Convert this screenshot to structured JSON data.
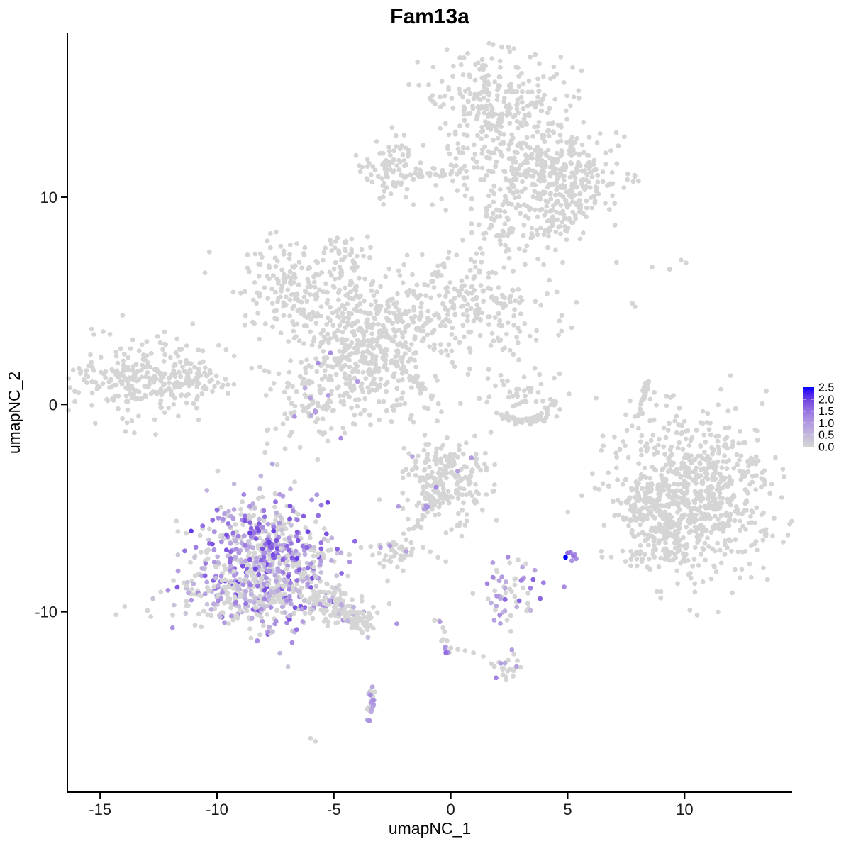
{
  "page": {
    "title": "Fam13a"
  },
  "chart_data": {
    "type": "scatter",
    "subtype": "umap-feature-plot",
    "title": "Fam13a",
    "xlabel": "umapNC_1",
    "ylabel": "umapNC_2",
    "xlim": [
      -16.4,
      14.6
    ],
    "ylim": [
      -18.7,
      17.9
    ],
    "xticks": [
      "-15",
      "-10",
      "-5",
      "0",
      "5",
      "10"
    ],
    "xtick_values": [
      -15,
      -10,
      -5,
      0,
      5,
      10
    ],
    "yticks": [
      "10",
      "0",
      "-10"
    ],
    "ytick_values": [
      10,
      0,
      -10
    ],
    "grid": false,
    "background": "#ffffff",
    "gray_color": "#d5d5d5",
    "point_color_stops": [
      [
        0,
        "#d5d5d5"
      ],
      [
        0.25,
        "#bfb1de"
      ],
      [
        0.5,
        "#a78ae2"
      ],
      [
        0.75,
        "#7b50e0"
      ],
      [
        0.92,
        "#3c16f2"
      ],
      [
        1,
        "#0000ff"
      ]
    ],
    "legend": {
      "position": "right",
      "labels": [
        "2.5",
        "2.0",
        "1.5",
        "1.0",
        "0.5",
        "0.0"
      ],
      "values": [
        2.5,
        2.0,
        1.5,
        1.0,
        0.5,
        0.0
      ],
      "vmin": 0.0,
      "vmax": 2.5,
      "low_color": "#d3d3d3",
      "high_color": "#0000ff"
    },
    "clusters": [
      {
        "name": "top-main-upper",
        "shape": "gauss",
        "cx": 1.97,
        "cy": 14.33,
        "sx": 1.45,
        "sy": 1.43,
        "n": 300
      },
      {
        "name": "top-main-mid",
        "shape": "gauss",
        "cx": 3.64,
        "cy": 11.43,
        "sx": 1.67,
        "sy": 1.13,
        "n": 260
      },
      {
        "name": "top-main-right",
        "shape": "gauss",
        "cx": 5.24,
        "cy": 10.82,
        "sx": 0.91,
        "sy": 0.92,
        "n": 130
      },
      {
        "name": "top-main-lower",
        "shape": "gauss",
        "cx": 2.79,
        "cy": 9.04,
        "sx": 1.21,
        "sy": 0.89,
        "n": 90
      },
      {
        "name": "top-main-lowerright",
        "shape": "gauss",
        "cx": 4.39,
        "cy": 8.7,
        "sx": 0.76,
        "sy": 0.68,
        "n": 40
      },
      {
        "name": "top-left-blob",
        "shape": "gauss",
        "cx": -2.42,
        "cy": 11.37,
        "sx": 0.76,
        "sy": 0.68,
        "n": 85
      },
      {
        "name": "top-left-trail",
        "shape": "bezier",
        "p": [
          -1.67,
          11.06,
          -0.45,
          11.33,
          0.82,
          11.19
        ],
        "jx": 0.15,
        "jy": 0.12,
        "n": 24
      },
      {
        "name": "mid-left-lobe",
        "shape": "gauss",
        "cx": -6.67,
        "cy": 5.53,
        "sx": 1.27,
        "sy": 1.16,
        "n": 180
      },
      {
        "name": "mid-top-blob",
        "shape": "gauss",
        "cx": -4.48,
        "cy": 7.3,
        "sx": 0.42,
        "sy": 0.44,
        "n": 35
      },
      {
        "name": "mid-top-chain",
        "shape": "bezier",
        "p": [
          -4.21,
          6.89,
          -4.09,
          5.8,
          -3.91,
          4.71
        ],
        "jx": 0.1,
        "jy": 0.1,
        "n": 8
      },
      {
        "name": "mid-center",
        "shape": "gauss",
        "cx": -3.48,
        "cy": 3.69,
        "sx": 1.52,
        "sy": 1.23,
        "n": 300
      },
      {
        "name": "mid-bottom",
        "shape": "gauss",
        "cx": -3.48,
        "cy": 1.71,
        "sx": 1.15,
        "sy": 0.89,
        "n": 140
      },
      {
        "name": "mid-right-arm",
        "shape": "gauss",
        "cx": 0.61,
        "cy": 4.85,
        "sx": 1.82,
        "sy": 1.13,
        "n": 240
      },
      {
        "name": "mid-streak",
        "shape": "bezier",
        "p": [
          -2.52,
          2.12,
          -1.67,
          1.3,
          -0.76,
          0.34
        ],
        "jx": 0.07,
        "jy": 0.07,
        "n": 32
      },
      {
        "name": "mid-sparse-below",
        "shape": "gauss",
        "cx": -2.27,
        "cy": -0.17,
        "sx": 1.21,
        "sy": 0.75,
        "n": 30
      },
      {
        "name": "mid-lower-blob",
        "shape": "gauss",
        "cx": -5.7,
        "cy": 0.48,
        "sx": 0.91,
        "sy": 1.13,
        "n": 120,
        "frac": 0.07,
        "tmin": 0.25,
        "tmax": 0.5
      },
      {
        "name": "left-oval",
        "shape": "gauss",
        "cx": -13.03,
        "cy": 1.3,
        "sx": 1.67,
        "sy": 0.89,
        "n": 280
      },
      {
        "name": "left-oval-tip",
        "shape": "gauss",
        "cx": -11.12,
        "cy": 1.16,
        "sx": 0.55,
        "sy": 0.34,
        "n": 40
      },
      {
        "name": "left-oval-trail",
        "shape": "points",
        "pts": [
          [
            -11.76,
            2.49,
            0
          ],
          [
            -11.52,
            2.66,
            0
          ],
          [
            -11.3,
            2.83,
            0
          ]
        ]
      },
      {
        "name": "cring-arc",
        "shape": "bezier",
        "p": [
          2.15,
          -0.44,
          3.33,
          -1.3,
          4.61,
          0.1
        ],
        "jx": 0.12,
        "jy": 0.1,
        "n": 55
      },
      {
        "name": "cring-scatter",
        "shape": "gauss",
        "cx": 3.09,
        "cy": 0.61,
        "sx": 0.76,
        "sy": 0.61,
        "n": 45
      },
      {
        "name": "thin-arc",
        "shape": "bezier",
        "p": [
          8.42,
          1.19,
          8.3,
          0.34,
          7.97,
          -0.61
        ],
        "jx": 0.05,
        "jy": 0.05,
        "n": 26
      },
      {
        "name": "thin-arc-dots",
        "shape": "points",
        "pts": [
          [
            8.7,
            0.58,
            0
          ],
          [
            8.79,
            -0.03,
            0
          ]
        ]
      },
      {
        "name": "right-big",
        "shape": "gauss",
        "cx": 10.39,
        "cy": -4.44,
        "sx": 1.72,
        "sy": 1.91,
        "n": 780
      },
      {
        "name": "right-appendage",
        "shape": "gauss",
        "cx": 8.27,
        "cy": -4.51,
        "sx": 0.39,
        "sy": 0.58,
        "n": 45
      },
      {
        "name": "right-tail",
        "shape": "gauss",
        "cx": 9.0,
        "cy": -6.62,
        "sx": 0.55,
        "sy": 0.75,
        "n": 60
      },
      {
        "name": "center-cluster",
        "shape": "gauss",
        "cx": -0.09,
        "cy": -3.82,
        "sx": 0.97,
        "sy": 1.02,
        "n": 230,
        "frac": 0.022,
        "tmin": 0.3,
        "tmax": 0.55
      },
      {
        "name": "center-tail",
        "shape": "bezier",
        "p": [
          -0.7,
          -4.54,
          -1.15,
          -5.36,
          -1.61,
          -6.21
        ],
        "jx": 0.07,
        "jy": 0.07,
        "n": 18,
        "frac": 0.12,
        "tmin": 0.3,
        "tmax": 0.45
      },
      {
        "name": "small-blob",
        "shape": "gauss",
        "cx": -2.27,
        "cy": -7.06,
        "sx": 0.48,
        "sy": 0.38,
        "n": 40,
        "frac": 0.06,
        "tmin": 0.3,
        "tmax": 0.45
      },
      {
        "name": "small-blob-dots",
        "shape": "points",
        "pts": [
          [
            -1.18,
            -6.89,
            0
          ],
          [
            -0.88,
            -7.1,
            0
          ],
          [
            -0.55,
            -7.37,
            0
          ],
          [
            -0.21,
            -7.58,
            0
          ]
        ]
      },
      {
        "name": "purple-main",
        "shape": "gauss",
        "cx": -7.97,
        "cy": -7.44,
        "sx": 1.52,
        "sy": 1.57,
        "n": 620,
        "frac": 0.6,
        "tmin": 0.1,
        "tmax": 0.82,
        "pow": 1.25
      },
      {
        "name": "purple-base",
        "shape": "gauss",
        "cx": -8.27,
        "cy": -9.28,
        "sx": 1.7,
        "sy": 0.82,
        "n": 260,
        "frac": 0.42,
        "tmin": 0.1,
        "tmax": 0.6,
        "pow": 1.3
      },
      {
        "name": "purple-tail",
        "shape": "bezier",
        "p": [
          -5.55,
          -9.28,
          -4.7,
          -9.83,
          -3.67,
          -10.44
        ],
        "jx": 0.5,
        "jy": 0.3,
        "n": 110,
        "frac": 0.1,
        "tmin": 0.12,
        "tmax": 0.4
      },
      {
        "name": "purple-tail-end",
        "shape": "gauss",
        "cx": -3.73,
        "cy": -10.44,
        "sx": 0.3,
        "sy": 0.27,
        "n": 25
      },
      {
        "name": "blue-mini",
        "shape": "points",
        "pts": [
          [
            4.91,
            -7.37,
            1.0
          ],
          [
            5.12,
            -7.13,
            0.55
          ],
          [
            5.3,
            -7.24,
            0.5
          ],
          [
            5.18,
            -7.54,
            0.45
          ],
          [
            5.0,
            -7.17,
            0.62
          ],
          [
            5.36,
            -7.44,
            0.5
          ],
          [
            5.24,
            -7.31,
            0.58
          ]
        ]
      },
      {
        "name": "mixed-small",
        "shape": "gauss",
        "cx": 2.45,
        "cy": -9.08,
        "sx": 0.61,
        "sy": 0.82,
        "n": 60,
        "frac": 0.5,
        "tmin": 0.2,
        "tmax": 0.68
      },
      {
        "name": "mixed-small-dots",
        "shape": "points",
        "pts": [
          [
            3.06,
            -7.85,
            0.3
          ],
          [
            3.21,
            -7.68,
            0
          ]
        ]
      },
      {
        "name": "chain-diag",
        "shape": "bezier",
        "p": [
          -0.48,
          -10.44,
          -0.36,
          -11.26,
          -0.12,
          -12.08
        ],
        "jx": 0.1,
        "jy": 0.1,
        "n": 16,
        "frac": 0.35,
        "tmin": 0.25,
        "tmax": 0.65
      },
      {
        "name": "chain-dark-dot",
        "shape": "points",
        "pts": [
          [
            -0.21,
            -11.98,
            0.62
          ]
        ]
      },
      {
        "name": "chain-right-dots",
        "shape": "points",
        "pts": [
          [
            0.3,
            -11.81,
            0
          ],
          [
            0.61,
            -11.88,
            0
          ],
          [
            0.97,
            -11.98,
            0
          ],
          [
            1.39,
            -12.15,
            0
          ]
        ]
      },
      {
        "name": "small-bottom",
        "shape": "gauss",
        "cx": 2.39,
        "cy": -12.66,
        "sx": 0.39,
        "sy": 0.34,
        "n": 24,
        "frac": 0.28,
        "tmin": 0.3,
        "tmax": 0.55
      },
      {
        "name": "crescent",
        "shape": "bezier",
        "p": [
          -3.39,
          -13.65,
          -3.27,
          -14.51,
          -3.58,
          -15.36
        ],
        "jx": 0.08,
        "jy": 0.08,
        "n": 26,
        "frac": 0.5,
        "tmin": 0.2,
        "tmax": 0.6
      },
      {
        "name": "lone-dots",
        "shape": "points",
        "pts": [
          [
            -6.0,
            -16.11,
            0
          ],
          [
            -5.79,
            -16.25,
            0
          ]
        ]
      },
      {
        "name": "scatter-topright",
        "shape": "points",
        "pts": [
          [
            7.09,
            6.86,
            0
          ],
          [
            8.61,
            6.62,
            0
          ],
          [
            9.36,
            6.52,
            0
          ],
          [
            9.85,
            6.96,
            0
          ],
          [
            10.06,
            6.83,
            0
          ],
          [
            7.76,
            4.88,
            0
          ],
          [
            7.88,
            4.71,
            0
          ]
        ]
      }
    ]
  }
}
